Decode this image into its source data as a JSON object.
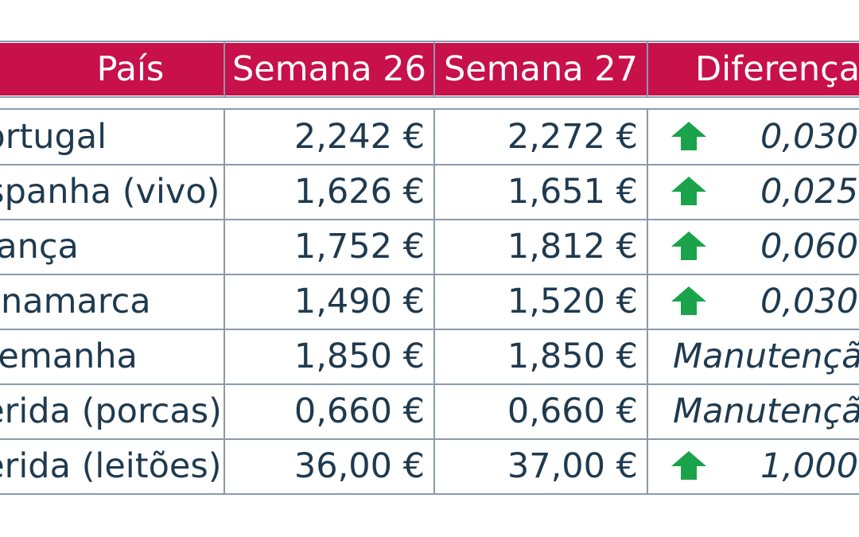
{
  "table": {
    "headers": [
      "País",
      "Semana 26",
      "Semana 27",
      "Diferença"
    ],
    "rows": [
      {
        "country": "Portugal",
        "w26": "2,242 €",
        "w27": "2,272 €",
        "diff": "0,030",
        "trend": "up"
      },
      {
        "country": "Espanha (vivo)",
        "w26": "1,626 €",
        "w27": "1,651 €",
        "diff": "0,025",
        "trend": "up"
      },
      {
        "country": "França",
        "w26": "1,752 €",
        "w27": "1,812 €",
        "diff": "0,060",
        "trend": "up"
      },
      {
        "country": "Dinamarca",
        "w26": "1,490 €",
        "w27": "1,520 €",
        "diff": "0,030",
        "trend": "up"
      },
      {
        "country": "Alemanha",
        "w26": "1,850 €",
        "w27": "1,850 €",
        "diff": "Manutenção",
        "trend": "none"
      },
      {
        "country": "Lérida (porcas)",
        "w26": "0,660 €",
        "w27": "0,660 €",
        "diff": "Manutenção",
        "trend": "none"
      },
      {
        "country": "Lérida (leitões)",
        "w26": "36,00 €",
        "w27": "37,00 €",
        "diff": "1,000",
        "trend": "up"
      }
    ]
  },
  "colors": {
    "header_bg": "#c8104a",
    "header_text": "#ffffff",
    "body_text": "#1f3a4f",
    "grid_line": "#8a9aab",
    "arrow_up": "#1aa34a"
  },
  "icons": {
    "trend_up": "arrow-up-icon"
  }
}
